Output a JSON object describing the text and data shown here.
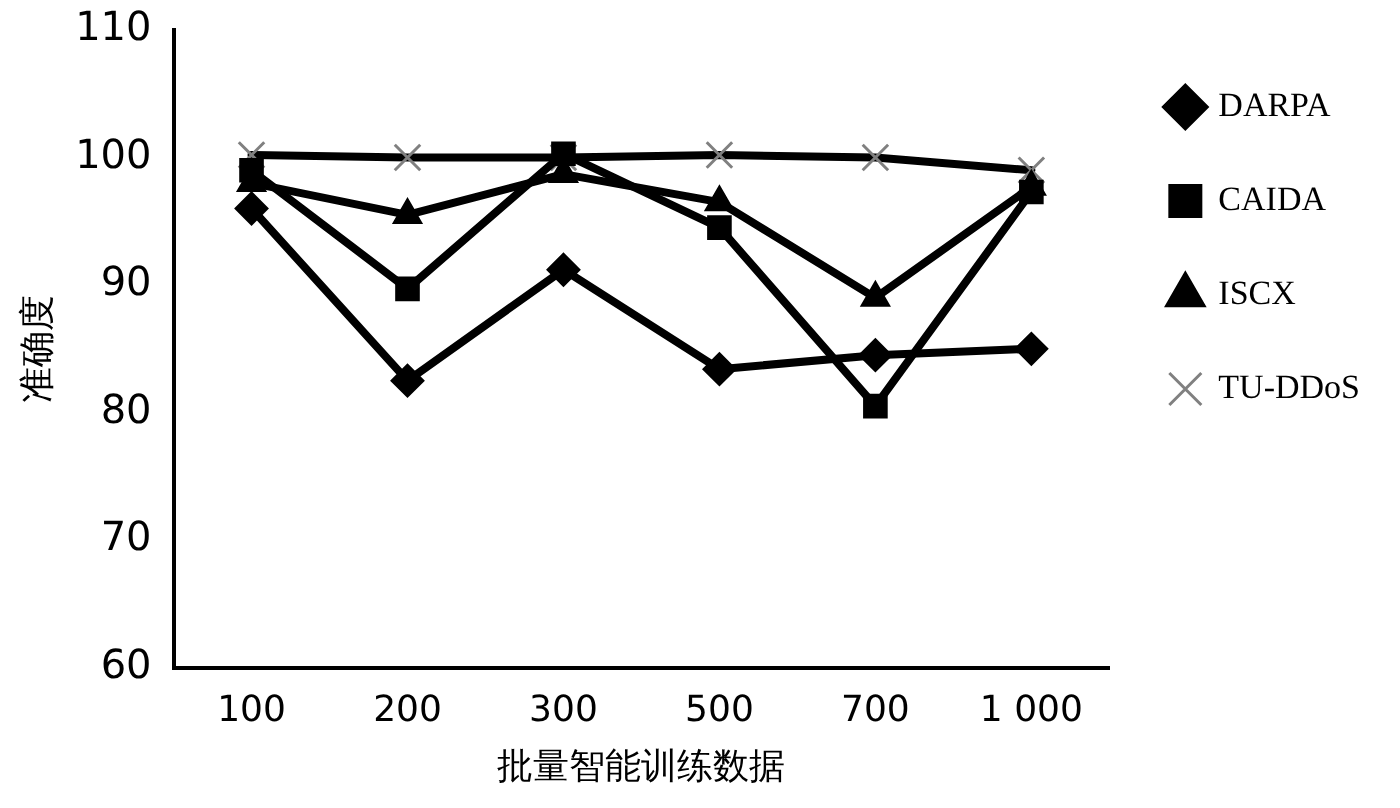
{
  "chart_data": {
    "type": "line",
    "xlabel": "批量智能训练数据",
    "ylabel": "准确度",
    "categories": [
      "100",
      "200",
      "300",
      "500",
      "700",
      "1 000"
    ],
    "series": [
      {
        "name": "DARPA",
        "color": "#000000",
        "marker": "diamond",
        "values": [
          96,
          82.5,
          91.2,
          83.4,
          84.5,
          85
        ]
      },
      {
        "name": "CAIDA",
        "color": "#000000",
        "marker": "square",
        "values": [
          99,
          89.7,
          100.3,
          94.5,
          80.5,
          97.3
        ]
      },
      {
        "name": "ISCX",
        "color": "#000000",
        "marker": "triangle",
        "values": [
          98,
          95.5,
          98.7,
          96.5,
          89,
          97.7
        ]
      },
      {
        "name": "TU-DDoS",
        "color": "#000000",
        "marker": "cross",
        "values": [
          100.2,
          100,
          100,
          100.2,
          100,
          99
        ]
      }
    ],
    "ylim": [
      60,
      110
    ],
    "yticks": [
      60,
      70,
      80,
      90,
      100,
      110
    ],
    "grid": false,
    "legend": "right",
    "line_style": "solid"
  }
}
